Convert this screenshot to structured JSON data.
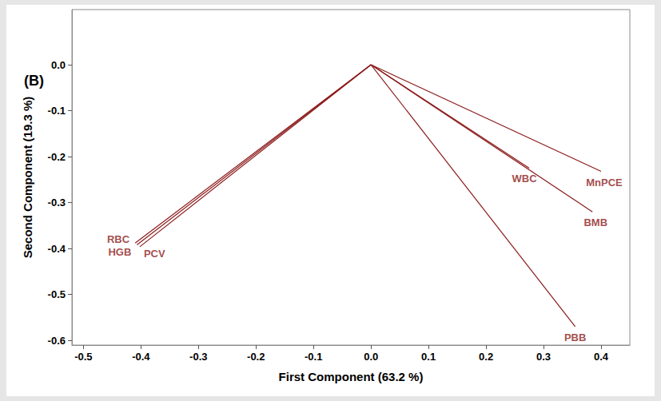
{
  "chart_data": {
    "type": "vector",
    "annotation": "(B)",
    "xlabel": "First Component (63.2 %)",
    "ylabel": "Second Component (19.3 %)",
    "color": "#8b1a1a",
    "points": [
      {
        "label": "RBC",
        "x": -0.41,
        "y": -0.388
      },
      {
        "label": "HGB",
        "x": -0.407,
        "y": -0.392
      },
      {
        "label": "PCV",
        "x": -0.402,
        "y": -0.396
      },
      {
        "label": "WBC",
        "x": 0.275,
        "y": -0.225
      },
      {
        "label": "MnPCE",
        "x": 0.4,
        "y": -0.232
      },
      {
        "label": "BMB",
        "x": 0.385,
        "y": -0.32
      },
      {
        "label": "PBB",
        "x": 0.355,
        "y": -0.57
      }
    ],
    "xlim": [
      -0.52,
      0.45
    ],
    "xticks": [
      -0.5,
      -0.4,
      -0.3,
      -0.2,
      -0.1,
      {
        "value": 0,
        "label": "0.0"
      },
      0.1,
      0.2,
      0.3,
      0.4
    ],
    "ylim": [
      -0.61,
      0.12
    ],
    "yticks": [
      -0.6,
      -0.5,
      -0.4,
      -0.3,
      -0.2,
      -0.1,
      {
        "value": 0,
        "label": "0.0"
      }
    ],
    "grid": false
  }
}
